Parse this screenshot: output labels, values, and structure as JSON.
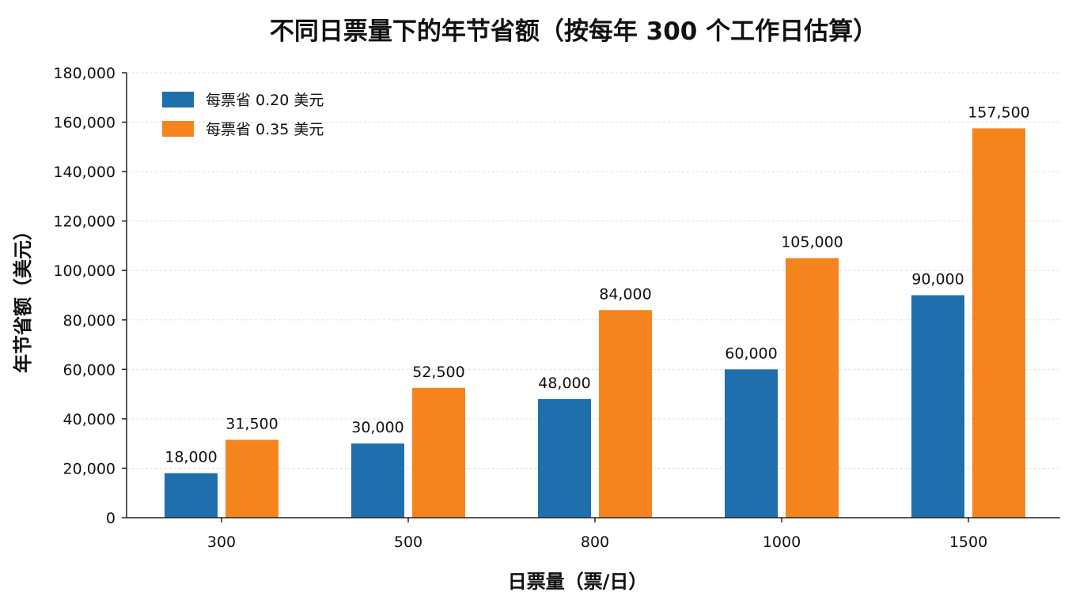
{
  "chart_data": {
    "type": "bar",
    "title": "不同日票量下的年节省额（按每年 300 个工作日估算）",
    "xlabel": "日票量（票/日）",
    "ylabel": "年节省额（美元）",
    "categories": [
      "300",
      "500",
      "800",
      "1000",
      "1500"
    ],
    "series": [
      {
        "name": "每票省 0.20 美元",
        "color": "#1f6fad",
        "values": [
          18000,
          30000,
          48000,
          60000,
          90000
        ],
        "labels": [
          "18,000",
          "30,000",
          "48,000",
          "60,000",
          "90,000"
        ]
      },
      {
        "name": "每票省 0.35 美元",
        "color": "#f5841f",
        "values": [
          31500,
          52500,
          84000,
          105000,
          157500
        ],
        "labels": [
          "31,500",
          "52,500",
          "84,000",
          "105,000",
          "157,500"
        ]
      }
    ],
    "ylim": [
      0,
      180000
    ],
    "yticks": [
      0,
      20000,
      40000,
      60000,
      80000,
      100000,
      120000,
      140000,
      160000,
      180000
    ],
    "ytick_labels": [
      "0",
      "20,000",
      "40,000",
      "60,000",
      "80,000",
      "100,000",
      "120,000",
      "140,000",
      "160,000",
      "180,000"
    ],
    "grid": true,
    "legend_position": "top-left"
  }
}
